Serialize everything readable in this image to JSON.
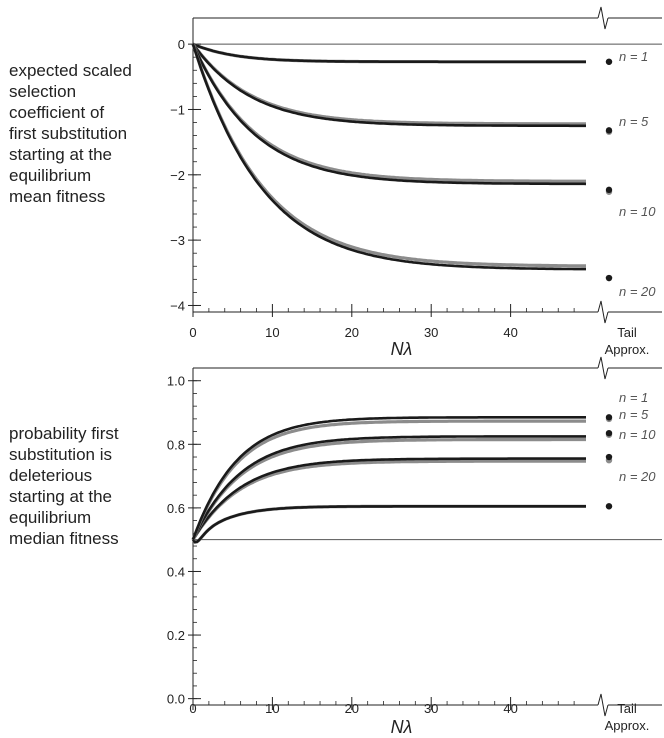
{
  "chart_data": [
    {
      "type": "line",
      "ylabel_lines": [
        "expected scaled",
        "selection",
        "coefficient of",
        "first substitution",
        "starting at the",
        "equilibrium",
        "mean fitness"
      ],
      "xlabel": "Nλ",
      "tail_label": [
        "Tail",
        "Approx."
      ],
      "xlim": [
        0,
        50
      ],
      "ylim": [
        -4.1,
        0.4
      ],
      "xticks": [
        0,
        10,
        20,
        30,
        40
      ],
      "xtick_labels": [
        "0",
        "10",
        "20",
        "30",
        "40"
      ],
      "yticks": [
        0,
        -1,
        -2,
        -3,
        -4
      ],
      "ytick_labels": [
        "0",
        "−1",
        "−2",
        "−3",
        "−4"
      ],
      "reference_y": 0,
      "series": [
        {
          "name": "n = 1",
          "asymptote": -0.27,
          "rate": 0.25,
          "gray_offset": 0.0,
          "tail_black": -0.27,
          "tail_gray": -0.27
        },
        {
          "name": "n = 5",
          "asymptote": -1.25,
          "rate": 0.18,
          "gray_offset": 0.03,
          "tail_black": -1.32,
          "tail_gray": -1.34
        },
        {
          "name": "n = 10",
          "asymptote": -2.14,
          "rate": 0.17,
          "gray_offset": 0.04,
          "tail_black": -2.23,
          "tail_gray": -2.26
        },
        {
          "name": "n = 20",
          "asymptote": -3.45,
          "rate": 0.15,
          "gray_offset": 0.05,
          "tail_black": -3.58,
          "tail_gray": -3.58
        }
      ],
      "label_names": [
        "n = 1",
        "n = 5",
        "n = 10",
        "n = 20"
      ]
    },
    {
      "type": "line",
      "ylabel_lines": [
        "probability first",
        "substitution is",
        "deleterious",
        "starting at the",
        "equilibrium",
        "median fitness"
      ],
      "xlabel": "Nλ",
      "tail_label": [
        "Tail",
        "Approx."
      ],
      "xlim": [
        0,
        50
      ],
      "ylim": [
        -0.02,
        1.04
      ],
      "xticks": [
        0,
        10,
        20,
        30,
        40
      ],
      "xtick_labels": [
        "0",
        "10",
        "20",
        "30",
        "40"
      ],
      "yticks": [
        0,
        0.2,
        0.4,
        0.6,
        0.8,
        1.0
      ],
      "ytick_labels": [
        "0.0",
        "0.2",
        "0.4",
        "0.6",
        "0.8",
        "1.0"
      ],
      "reference_y": 0.5,
      "series": [
        {
          "name": "n = 1",
          "asymptote": 0.605,
          "rate": 0.3,
          "gray_offset": 0.0,
          "tail_black": 0.605,
          "tail_gray": 0.605,
          "dip": true
        },
        {
          "name": "n = 5",
          "asymptote": 0.755,
          "rate": 0.22,
          "gray_offset": -0.008,
          "tail_black": 0.76,
          "tail_gray": 0.75
        },
        {
          "name": "n = 10",
          "asymptote": 0.825,
          "rate": 0.22,
          "gray_offset": -0.01,
          "tail_black": 0.835,
          "tail_gray": 0.83
        },
        {
          "name": "n = 20",
          "asymptote": 0.885,
          "rate": 0.24,
          "gray_offset": -0.012,
          "tail_black": 0.885,
          "tail_gray": 0.88
        }
      ],
      "label_names": [
        "n = 1",
        "n = 5",
        "n = 10",
        "n = 20"
      ]
    }
  ],
  "colors": {
    "black_curve": "#1a1a1a",
    "gray_curve": "#8c8c8c",
    "axis": "#222222"
  }
}
